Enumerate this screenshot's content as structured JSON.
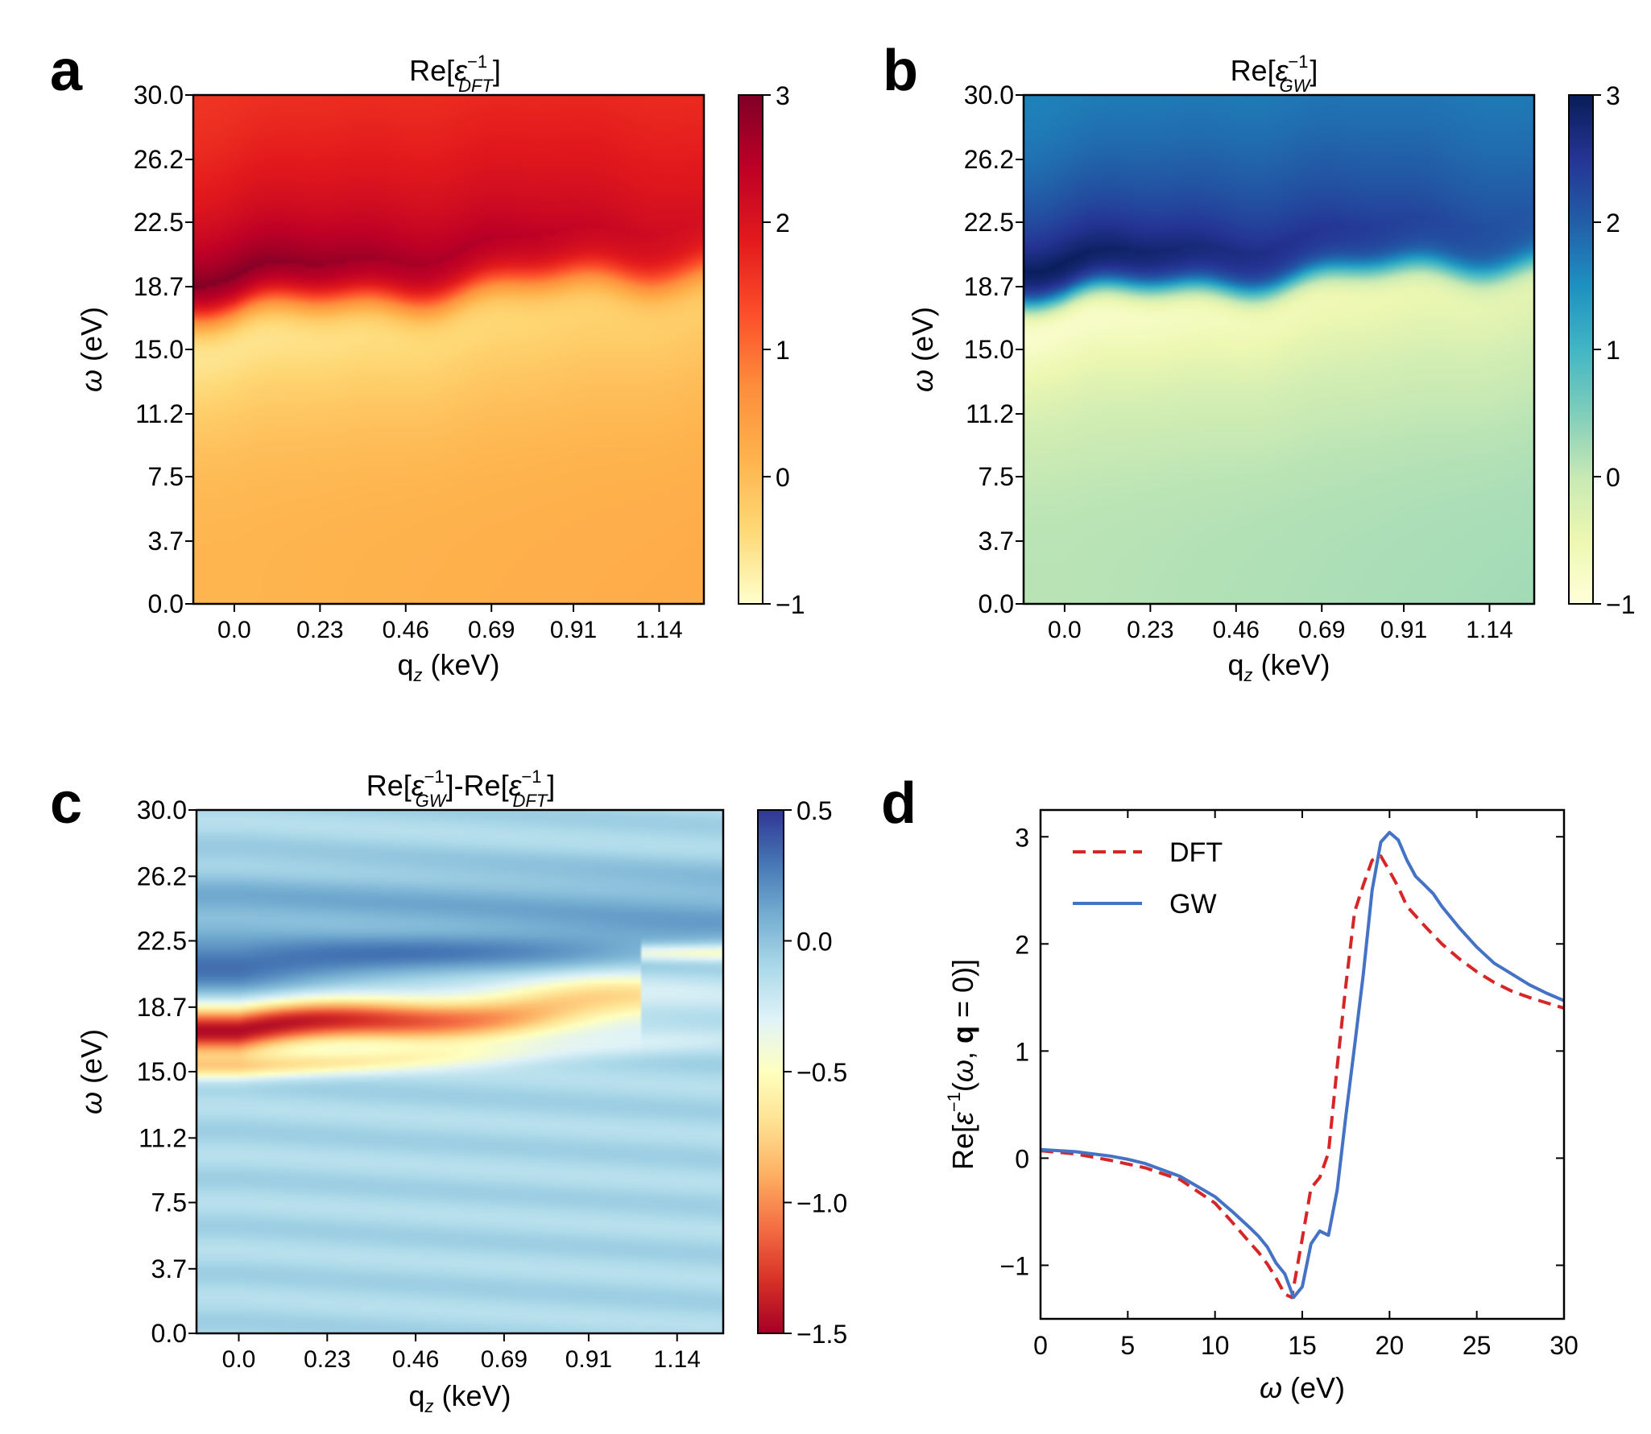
{
  "panels": {
    "a": {
      "letter": "a",
      "title_main": "Re[",
      "title_eps": "ε",
      "title_sup": "−1",
      "title_sub": "DFT",
      "title_end": "]"
    },
    "b": {
      "letter": "b",
      "title_main": "Re[",
      "title_eps": "ε",
      "title_sup": "−1",
      "title_sub": "GW",
      "title_end": "]"
    },
    "c": {
      "letter": "c",
      "t1": "Re[",
      "eps": "ε",
      "sup": "−1",
      "sub1": "GW",
      "t2": "]-Re[",
      "sub2": "DFT",
      "t3": "]"
    },
    "d": {
      "letter": "d"
    }
  },
  "axes": {
    "y_label_omega": "ω",
    "y_label_unit": " (eV)",
    "x_label_q": "q",
    "x_label_sub": "z",
    "x_label_unit": " (keV)",
    "y_ticks": [
      "30.0",
      "26.2",
      "22.5",
      "18.7",
      "15.0",
      "11.2",
      "7.5",
      "3.7",
      "0.0"
    ],
    "x_ticks": [
      "0.0",
      "0.23",
      "0.46",
      "0.69",
      "0.91",
      "1.14"
    ]
  },
  "colorbars": {
    "a": {
      "ticks": [
        "3",
        "2",
        "1",
        "0",
        "−1"
      ],
      "range": [
        -1,
        3
      ],
      "colors": [
        "#ffffcc",
        "#fed976",
        "#feb24c",
        "#fd8d3c",
        "#fc4e2a",
        "#e31a1c",
        "#bd0026",
        "#800026"
      ]
    },
    "b": {
      "ticks": [
        "3",
        "2",
        "1",
        "0",
        "−1"
      ],
      "range": [
        -1,
        3
      ],
      "colors": [
        "#ffffd9",
        "#edf8b1",
        "#c7e9b4",
        "#7fcdbb",
        "#41b6c4",
        "#1d91c0",
        "#225ea8",
        "#253494",
        "#081d58"
      ]
    },
    "c": {
      "ticks": [
        "0.5",
        "0.0",
        "−0.5",
        "−1.0",
        "−1.5"
      ],
      "range": [
        -1.5,
        0.5
      ],
      "colors": [
        "#a50026",
        "#d73027",
        "#f46d43",
        "#fdae61",
        "#fee090",
        "#ffffbf",
        "#e0f3f8",
        "#abd9e9",
        "#74add1",
        "#4575b4",
        "#313695"
      ]
    }
  },
  "chart_data": [
    {
      "type": "heatmap",
      "panel": "a",
      "title": "Re[ε^-1_DFT]",
      "xlabel": "q_z (keV)",
      "ylabel": "ω (eV)",
      "xlim": [
        -0.11,
        1.26
      ],
      "ylim": [
        0,
        30
      ],
      "clim": [
        -1,
        3
      ],
      "colormap": "YlOrRd",
      "description_values": {
        "peak_omega_at_q0": 19.2,
        "peak_omega_at_qmax": 22.5,
        "peak_value": 3.0,
        "high_omega_value": 1.45,
        "dip_omega": 14.5,
        "dip_value": -1.2,
        "low_omega_value": 0.1
      }
    },
    {
      "type": "heatmap",
      "panel": "b",
      "title": "Re[ε^-1_GW]",
      "xlabel": "q_z (keV)",
      "ylabel": "ω (eV)",
      "xlim": [
        -0.11,
        1.26
      ],
      "ylim": [
        0,
        30
      ],
      "clim": [
        -1,
        3
      ],
      "colormap": "YlGnBu",
      "description_values": {
        "peak_omega_at_q0": 20.0,
        "peak_omega_at_qmax": 23.0,
        "peak_value": 3.0,
        "high_omega_value": 1.5,
        "dip_omega": 14.5,
        "dip_value": -1.3,
        "low_omega_value": 0.1
      }
    },
    {
      "type": "heatmap",
      "panel": "c",
      "title": "Re[ε^-1_GW]-Re[ε^-1_DFT]",
      "xlabel": "q_z (keV)",
      "ylabel": "ω (eV)",
      "xlim": [
        -0.11,
        1.26
      ],
      "ylim": [
        0,
        30
      ],
      "clim": [
        -1.5,
        0.5
      ],
      "colormap": "RdYlBu",
      "description_values": {
        "min_value": -1.5,
        "min_omega": 17.3,
        "max_value": 0.35,
        "max_omega": 21.0,
        "background": -0.1
      }
    },
    {
      "type": "line",
      "panel": "d",
      "xlabel": "ω (eV)",
      "ylabel": "Re[ε^-1(ω, q = 0)]",
      "xlim": [
        0,
        30
      ],
      "ylim": [
        -1.5,
        3.25
      ],
      "x_ticks": [
        0,
        5,
        10,
        15,
        20,
        25,
        30
      ],
      "y_ticks": [
        -1,
        0,
        1,
        2,
        3
      ],
      "x_tick_labels": [
        "0",
        "5",
        "10",
        "15",
        "20",
        "25",
        "30"
      ],
      "y_tick_labels": [
        "−1",
        "0",
        "1",
        "2",
        "3"
      ],
      "legend": {
        "position": "upper-left"
      },
      "series": [
        {
          "name": "DFT",
          "color": "#d62728",
          "style": "dashed",
          "x": [
            0,
            2,
            4,
            6,
            8,
            10,
            11,
            12,
            12.5,
            13,
            13.5,
            14,
            14.4,
            15,
            15.5,
            16,
            16.5,
            17,
            17.5,
            18,
            18.5,
            19,
            19.5,
            20,
            20.5,
            21,
            22,
            23,
            24,
            25,
            26,
            27,
            28,
            29,
            30
          ],
          "y": [
            0.07,
            0.04,
            -0.02,
            -0.09,
            -0.2,
            -0.42,
            -0.6,
            -0.79,
            -0.88,
            -0.99,
            -1.12,
            -1.27,
            -1.3,
            -0.75,
            -0.28,
            -0.18,
            0.05,
            0.85,
            1.62,
            2.3,
            2.55,
            2.78,
            2.82,
            2.68,
            2.53,
            2.35,
            2.17,
            2.0,
            1.86,
            1.74,
            1.64,
            1.56,
            1.5,
            1.45,
            1.4
          ]
        },
        {
          "name": "GW",
          "color": "#4472c4",
          "style": "solid",
          "x": [
            0,
            2,
            4,
            5,
            6,
            8,
            10,
            11,
            12,
            12.5,
            13,
            13.5,
            14,
            14.5,
            15,
            15.5,
            16,
            16.5,
            17,
            17.5,
            18,
            18.5,
            19,
            19.5,
            20,
            20.5,
            21,
            21.5,
            22,
            22.5,
            23,
            24,
            25,
            26,
            27,
            28,
            29,
            30
          ],
          "y": [
            0.08,
            0.06,
            0.02,
            -0.01,
            -0.05,
            -0.17,
            -0.36,
            -0.5,
            -0.65,
            -0.73,
            -0.83,
            -0.98,
            -1.08,
            -1.3,
            -1.2,
            -0.8,
            -0.68,
            -0.72,
            -0.3,
            0.4,
            1.05,
            1.72,
            2.5,
            2.95,
            3.04,
            2.97,
            2.78,
            2.63,
            2.55,
            2.47,
            2.35,
            2.15,
            1.97,
            1.82,
            1.72,
            1.62,
            1.54,
            1.47
          ]
        }
      ]
    }
  ]
}
